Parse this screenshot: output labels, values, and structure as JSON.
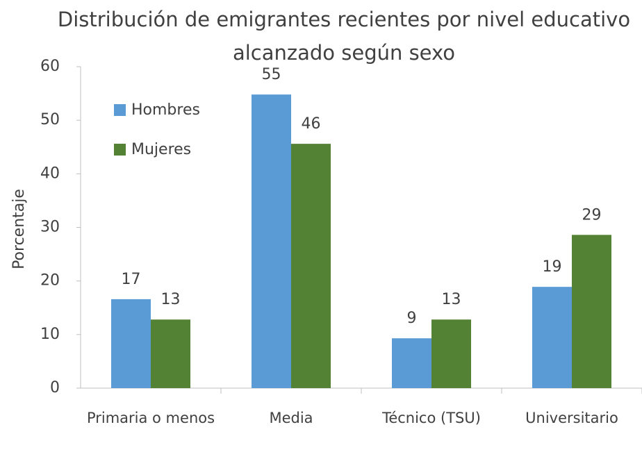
{
  "chart_data": {
    "type": "bar",
    "title": "Distribución de emigrantes recientes por nivel educativo alcanzado según sexo",
    "ylabel": "Porcentaje",
    "categories": [
      "Primaria o menos",
      "Media",
      "Técnico (TSU)",
      "Universitario"
    ],
    "series": [
      {
        "name": "Hombres",
        "color": "#5b9bd5",
        "values": [
          16.6,
          54.8,
          9.3,
          18.9
        ],
        "value_labels": [
          "17",
          "55",
          "9",
          "19"
        ]
      },
      {
        "name": "Mujeres",
        "color": "#548235",
        "values": [
          12.8,
          45.6,
          12.8,
          28.6
        ],
        "value_labels": [
          "13",
          "46",
          "13",
          "29"
        ]
      }
    ],
    "ylim": [
      0,
      60
    ],
    "yticks": [
      0,
      10,
      20,
      30,
      40,
      50,
      60
    ],
    "grid": false,
    "legend": "upper left"
  }
}
